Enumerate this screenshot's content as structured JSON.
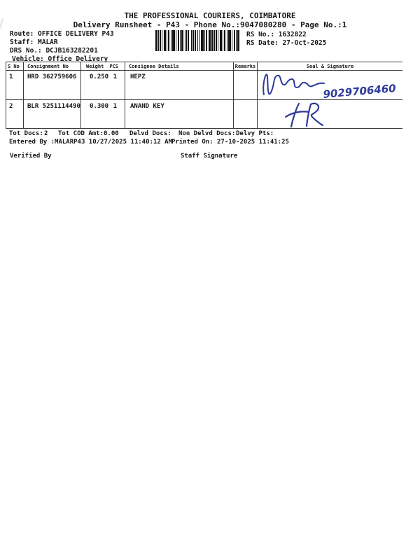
{
  "header": {
    "title": "THE PROFESSIONAL COURIERS, COIMBATORE",
    "subtitle": "Delivery Runsheet - P43 - Phone No.:9047080280 - Page No.:1"
  },
  "info": {
    "route_label": "Route:",
    "route_value": "OFFICE DELIVERY P43",
    "staff_label": "Staff:",
    "staff_value": "MALAR",
    "drs_label": "DRS No.:",
    "drs_value": "DCJB163282201",
    "vehicle_label": "Vehicle:",
    "vehicle_value": "Office Delivery",
    "rs_no_label": "RS No.:",
    "rs_no_value": "1632822",
    "rs_date_label": "RS Date:",
    "rs_date_value": "27-Oct-2025"
  },
  "table": {
    "headers": {
      "s_no": "S No",
      "consignment": "Consignment No",
      "weight": "Weight",
      "pcs": "PCS",
      "consignee": "Consignee Details",
      "remarks": "Remarks",
      "seal": "Seal & Signature"
    },
    "rows": [
      {
        "s_no": "1",
        "consignment": "HRD 362759606",
        "weight": "0.250",
        "pcs": "1",
        "consignee": "HEPZ",
        "remarks": "",
        "signature": "9029706460"
      },
      {
        "s_no": "2",
        "consignment": "BLR 5251114490",
        "weight": "0.300",
        "pcs": "1",
        "consignee": "ANAND KEY",
        "remarks": "",
        "signature": "HR"
      }
    ]
  },
  "summary": {
    "tot_docs_label": "Tot Docs:",
    "tot_docs_value": "2",
    "tot_cod_label": "Tot COD Amt:",
    "tot_cod_value": "0.00",
    "delvd_docs_label": "Delvd Docs:",
    "delvd_docs_value": "",
    "non_delvd_docs_label": "Non Delvd Docs:",
    "non_delvd_docs_value": "",
    "delvy_pts_label": "Delvy Pts:",
    "delvy_pts_value": ""
  },
  "footer": {
    "entered_by_label": "Entered By :",
    "entered_by_value": "MALARP43 10/27/2025 11:40:12 AM",
    "printed_on_label": "Printed On:",
    "printed_on_value": "27-10-2025 11:41:25",
    "verified_by_label": "Verified By",
    "staff_signature_label": "Staff Signature"
  },
  "colors": {
    "ink": "#161616",
    "line": "#3c3c3c",
    "signature_blue": "#2e3a99"
  }
}
